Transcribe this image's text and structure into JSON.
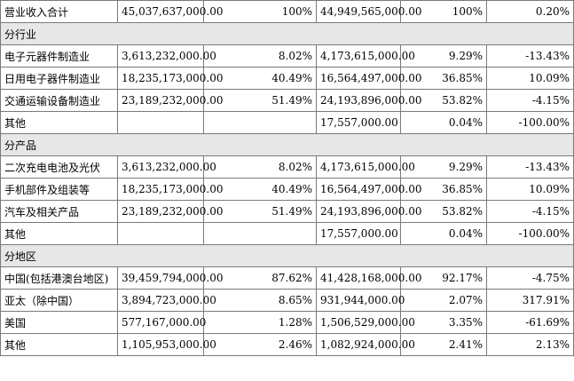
{
  "table": {
    "rows": [
      {
        "type": "data",
        "name": "营业收入合计",
        "amount_current": "45,037,637,000.00",
        "ratio_current": "100%",
        "amount_prior": "44,949,565,000.00",
        "ratio_prior": "100%",
        "change": "0.20%"
      },
      {
        "type": "section",
        "label": "分行业"
      },
      {
        "type": "data",
        "name": "电子元器件制造业",
        "amount_current": "3,613,232,000.00",
        "ratio_current": "8.02%",
        "amount_prior": "4,173,615,000.00",
        "ratio_prior": "9.29%",
        "change": "-13.43%"
      },
      {
        "type": "data",
        "name": "日用电子器件制造业",
        "amount_current": "18,235,173,000.00",
        "ratio_current": "40.49%",
        "amount_prior": "16,564,497,000.00",
        "ratio_prior": "36.85%",
        "change": "10.09%"
      },
      {
        "type": "data",
        "name": "交通运输设备制造业",
        "amount_current": "23,189,232,000.00",
        "ratio_current": "51.49%",
        "amount_prior": "24,193,896,000.00",
        "ratio_prior": "53.82%",
        "change": "-4.15%"
      },
      {
        "type": "data",
        "name": "其他",
        "amount_current": "",
        "ratio_current": "",
        "amount_prior": "17,557,000.00",
        "ratio_prior": "0.04%",
        "change": "-100.00%"
      },
      {
        "type": "section",
        "label": "分产品"
      },
      {
        "type": "data",
        "name": "二次充电电池及光伏",
        "amount_current": "3,613,232,000.00",
        "ratio_current": "8.02%",
        "amount_prior": "4,173,615,000.00",
        "ratio_prior": "9.29%",
        "change": "-13.43%"
      },
      {
        "type": "data",
        "name": "手机部件及组装等",
        "amount_current": "18,235,173,000.00",
        "ratio_current": "40.49%",
        "amount_prior": "16,564,497,000.00",
        "ratio_prior": "36.85%",
        "change": "10.09%"
      },
      {
        "type": "data",
        "name": "汽车及相关产品",
        "amount_current": "23,189,232,000.00",
        "ratio_current": "51.49%",
        "amount_prior": "24,193,896,000.00",
        "ratio_prior": "53.82%",
        "change": "-4.15%"
      },
      {
        "type": "data",
        "name": "其他",
        "amount_current": "",
        "ratio_current": "",
        "amount_prior": "17,557,000.00",
        "ratio_prior": "0.04%",
        "change": "-100.00%"
      },
      {
        "type": "section",
        "label": "分地区"
      },
      {
        "type": "data",
        "name": "中国(包括港澳台地区)",
        "amount_current": "39,459,794,000.00",
        "ratio_current": "87.62%",
        "amount_prior": "41,428,168,000.00",
        "ratio_prior": "92.17%",
        "change": "-4.75%"
      },
      {
        "type": "data",
        "name": "亚太（除中国）",
        "amount_current": "3,894,723,000.00",
        "ratio_current": "8.65%",
        "amount_prior": "931,944,000.00",
        "ratio_prior": "2.07%",
        "change": "317.91%"
      },
      {
        "type": "data",
        "name": "美国",
        "amount_current": "577,167,000.00",
        "ratio_current": "1.28%",
        "amount_prior": "1,506,529,000.00",
        "ratio_prior": "3.35%",
        "change": "-61.69%"
      },
      {
        "type": "data",
        "name": "其他",
        "amount_current": "1,105,953,000.00",
        "ratio_current": "2.46%",
        "amount_prior": "1,082,924,000.00",
        "ratio_prior": "2.41%",
        "change": "2.13%"
      }
    ]
  }
}
